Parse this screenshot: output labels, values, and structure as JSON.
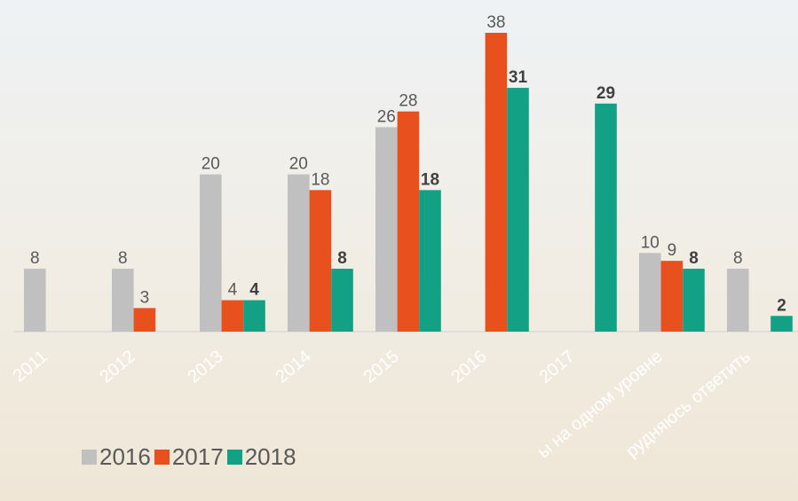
{
  "chart_data": {
    "type": "bar",
    "categories": [
      "2011",
      "2012",
      "2013",
      "2014",
      "2015",
      "2016",
      "2017",
      "ы на одном уровне",
      "рудняюсь ответить"
    ],
    "series": [
      {
        "name": "2016",
        "color": "#c0c0c0",
        "label_weight": "normal",
        "values": [
          8,
          8,
          20,
          20,
          26,
          null,
          null,
          10,
          8
        ]
      },
      {
        "name": "2017",
        "color": "#e8501e",
        "label_weight": "normal",
        "values": [
          null,
          3,
          4,
          18,
          28,
          38,
          null,
          9,
          null
        ]
      },
      {
        "name": "2018",
        "color": "#12a184",
        "label_weight": "bold",
        "values": [
          null,
          null,
          4,
          8,
          18,
          31,
          29,
          8,
          2
        ]
      }
    ]
  }
}
